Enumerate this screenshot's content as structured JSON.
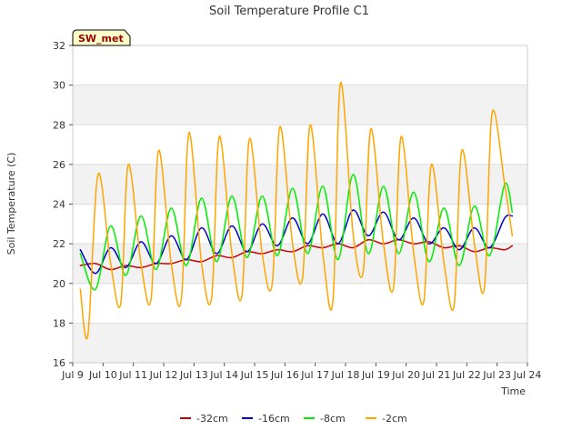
{
  "chart_data": {
    "type": "line",
    "title": "Soil Temperature Profile C1",
    "xlabel": "Time",
    "ylabel": "Soil Temperature (C)",
    "badge": "SW_met",
    "ylim": [
      16,
      32
    ],
    "yticks": [
      16,
      18,
      20,
      22,
      24,
      26,
      28,
      30,
      32
    ],
    "xlim": [
      "2024-07-09",
      "2024-07-24"
    ],
    "xticks": [
      "Jul 9",
      "Jul 10",
      "Jul 11",
      "Jul 12",
      "Jul 13",
      "Jul 14",
      "Jul 15",
      "Jul 16",
      "Jul 17",
      "Jul 18",
      "Jul 19",
      "Jul 20",
      "Jul 21",
      "Jul 22",
      "Jul 23",
      "Jul 24"
    ],
    "grid": true,
    "legend_position": "bottom",
    "series": [
      {
        "name": "-32cm",
        "color": "#cc0000",
        "x": [
          "2024-07-09 06:00",
          "2024-07-09 18:00",
          "2024-07-10 06:00",
          "2024-07-10 18:00",
          "2024-07-11 06:00",
          "2024-07-11 18:00",
          "2024-07-12 06:00",
          "2024-07-12 18:00",
          "2024-07-13 06:00",
          "2024-07-13 18:00",
          "2024-07-14 06:00",
          "2024-07-14 18:00",
          "2024-07-15 06:00",
          "2024-07-15 18:00",
          "2024-07-16 06:00",
          "2024-07-16 18:00",
          "2024-07-17 06:00",
          "2024-07-17 18:00",
          "2024-07-18 06:00",
          "2024-07-18 18:00",
          "2024-07-19 06:00",
          "2024-07-19 18:00",
          "2024-07-20 06:00",
          "2024-07-20 18:00",
          "2024-07-21 06:00",
          "2024-07-21 18:00",
          "2024-07-22 06:00",
          "2024-07-22 18:00",
          "2024-07-23 06:00",
          "2024-07-23 12:00"
        ],
        "values": [
          20.9,
          21.0,
          20.7,
          20.9,
          20.8,
          21.0,
          21.0,
          21.2,
          21.1,
          21.4,
          21.3,
          21.6,
          21.5,
          21.7,
          21.6,
          21.9,
          21.8,
          22.0,
          21.8,
          22.2,
          22.0,
          22.2,
          22.0,
          22.1,
          21.8,
          21.9,
          21.6,
          21.8,
          21.7,
          21.9
        ]
      },
      {
        "name": "-16cm",
        "color": "#0000cc",
        "x": [
          "2024-07-09 06:00",
          "2024-07-09 18:00",
          "2024-07-10 06:00",
          "2024-07-10 18:00",
          "2024-07-11 06:00",
          "2024-07-11 18:00",
          "2024-07-12 06:00",
          "2024-07-12 18:00",
          "2024-07-13 06:00",
          "2024-07-13 18:00",
          "2024-07-14 06:00",
          "2024-07-14 18:00",
          "2024-07-15 06:00",
          "2024-07-15 18:00",
          "2024-07-16 06:00",
          "2024-07-16 18:00",
          "2024-07-17 06:00",
          "2024-07-17 18:00",
          "2024-07-18 06:00",
          "2024-07-18 18:00",
          "2024-07-19 06:00",
          "2024-07-19 18:00",
          "2024-07-20 06:00",
          "2024-07-20 18:00",
          "2024-07-21 06:00",
          "2024-07-21 18:00",
          "2024-07-22 06:00",
          "2024-07-22 18:00",
          "2024-07-23 06:00",
          "2024-07-23 12:00"
        ],
        "values": [
          21.7,
          20.5,
          21.8,
          20.8,
          22.1,
          21.0,
          22.4,
          21.2,
          22.8,
          21.5,
          22.9,
          21.6,
          23.0,
          21.9,
          23.3,
          22.0,
          23.5,
          22.0,
          23.7,
          22.4,
          23.6,
          22.2,
          23.3,
          22.0,
          22.8,
          21.7,
          22.8,
          21.8,
          23.3,
          23.4
        ]
      },
      {
        "name": "-8cm",
        "color": "#00ee00",
        "x": [
          "2024-07-09 06:00",
          "2024-07-09 18:00",
          "2024-07-10 06:00",
          "2024-07-10 18:00",
          "2024-07-11 06:00",
          "2024-07-11 18:00",
          "2024-07-12 06:00",
          "2024-07-12 18:00",
          "2024-07-13 06:00",
          "2024-07-13 18:00",
          "2024-07-14 06:00",
          "2024-07-14 18:00",
          "2024-07-15 06:00",
          "2024-07-15 18:00",
          "2024-07-16 06:00",
          "2024-07-16 18:00",
          "2024-07-17 06:00",
          "2024-07-17 18:00",
          "2024-07-18 06:00",
          "2024-07-18 18:00",
          "2024-07-19 06:00",
          "2024-07-19 18:00",
          "2024-07-20 06:00",
          "2024-07-20 18:00",
          "2024-07-21 06:00",
          "2024-07-21 18:00",
          "2024-07-22 06:00",
          "2024-07-22 18:00",
          "2024-07-23 06:00",
          "2024-07-23 12:00"
        ],
        "values": [
          21.5,
          19.7,
          22.9,
          20.4,
          23.4,
          20.7,
          23.8,
          20.9,
          24.3,
          21.1,
          24.4,
          21.3,
          24.4,
          21.4,
          24.8,
          21.5,
          24.9,
          21.2,
          25.5,
          21.5,
          24.9,
          21.5,
          24.6,
          21.1,
          23.8,
          20.9,
          23.9,
          21.4,
          25.0,
          23.6
        ]
      },
      {
        "name": "-2cm",
        "color": "#ffa500",
        "x": [
          "2024-07-09 06:00",
          "2024-07-09 12:00",
          "2024-07-09 20:00",
          "2024-07-10 06:00",
          "2024-07-10 14:00",
          "2024-07-10 20:00",
          "2024-07-11 06:00",
          "2024-07-11 14:00",
          "2024-07-11 20:00",
          "2024-07-12 06:00",
          "2024-07-12 14:00",
          "2024-07-12 20:00",
          "2024-07-13 06:00",
          "2024-07-13 14:00",
          "2024-07-13 20:00",
          "2024-07-14 06:00",
          "2024-07-14 14:00",
          "2024-07-14 20:00",
          "2024-07-15 06:00",
          "2024-07-15 14:00",
          "2024-07-15 20:00",
          "2024-07-16 06:00",
          "2024-07-16 14:00",
          "2024-07-16 20:00",
          "2024-07-17 06:00",
          "2024-07-17 14:00",
          "2024-07-17 20:00",
          "2024-07-18 06:00",
          "2024-07-18 14:00",
          "2024-07-18 20:00",
          "2024-07-19 06:00",
          "2024-07-19 14:00",
          "2024-07-19 20:00",
          "2024-07-20 06:00",
          "2024-07-20 14:00",
          "2024-07-20 20:00",
          "2024-07-21 06:00",
          "2024-07-21 14:00",
          "2024-07-21 20:00",
          "2024-07-22 06:00",
          "2024-07-22 14:00",
          "2024-07-22 20:00",
          "2024-07-23 06:00",
          "2024-07-23 12:00"
        ],
        "values": [
          19.7,
          17.4,
          25.5,
          21.0,
          19.0,
          26.0,
          21.0,
          19.2,
          26.7,
          21.0,
          19.2,
          27.6,
          21.0,
          19.3,
          27.4,
          21.5,
          19.4,
          27.3,
          21.5,
          20.0,
          27.9,
          22.0,
          20.3,
          28.0,
          21.5,
          19.1,
          30.1,
          22.5,
          20.6,
          27.8,
          22.0,
          19.8,
          27.4,
          21.5,
          19.1,
          26.0,
          21.0,
          18.9,
          26.7,
          22.0,
          19.8,
          28.6,
          25.0,
          22.4
        ]
      }
    ]
  }
}
